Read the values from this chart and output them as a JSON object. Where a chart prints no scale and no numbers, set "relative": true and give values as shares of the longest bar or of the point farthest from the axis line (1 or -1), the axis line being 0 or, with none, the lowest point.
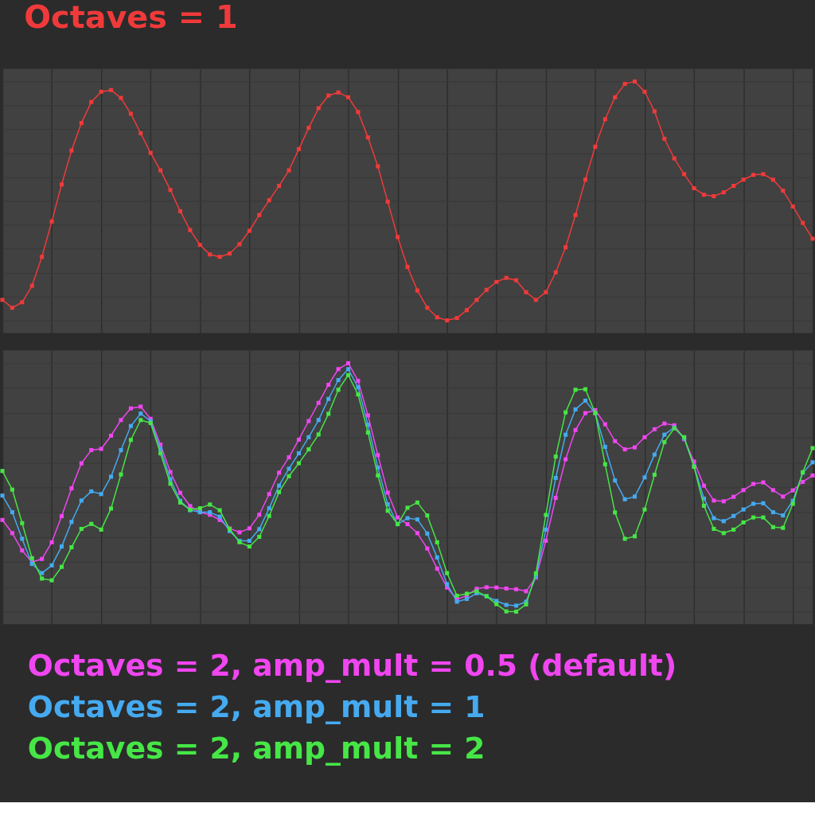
{
  "chart_data": [
    {
      "type": "line",
      "title": "Octaves = 1",
      "relative": true,
      "marker": "square",
      "grid": true,
      "tick_labels": false,
      "categories": [
        null,
        null,
        null,
        null,
        null,
        null,
        null,
        null,
        null,
        null,
        null,
        null,
        null,
        null,
        null,
        null,
        null,
        null,
        null,
        null,
        null,
        null,
        null,
        null,
        null,
        null,
        null,
        null,
        null,
        null,
        null,
        null,
        null,
        null,
        null,
        null,
        null,
        null,
        null,
        null,
        null,
        null,
        null,
        null,
        null,
        null,
        null,
        null,
        null,
        null,
        null,
        null,
        null,
        null,
        null,
        null,
        null,
        null,
        null,
        null,
        null,
        null,
        null,
        null,
        null,
        null,
        null,
        null,
        null,
        null,
        null,
        null,
        null,
        null,
        null,
        null,
        null,
        null,
        null,
        null,
        null,
        null,
        null
      ],
      "series": [
        {
          "color": "#f03a3a",
          "values": [
            0.086,
            0.053,
            0.076,
            0.145,
            0.266,
            0.414,
            0.569,
            0.711,
            0.826,
            0.914,
            0.957,
            0.964,
            0.931,
            0.865,
            0.783,
            0.701,
            0.628,
            0.546,
            0.457,
            0.378,
            0.316,
            0.276,
            0.266,
            0.28,
            0.319,
            0.375,
            0.441,
            0.503,
            0.563,
            0.628,
            0.717,
            0.806,
            0.888,
            0.941,
            0.954,
            0.934,
            0.872,
            0.766,
            0.645,
            0.497,
            0.349,
            0.224,
            0.125,
            0.053,
            0.013,
            0,
            0.01,
            0.043,
            0.086,
            0.128,
            0.161,
            0.178,
            0.168,
            0.118,
            0.086,
            0.118,
            0.201,
            0.306,
            0.441,
            0.589,
            0.727,
            0.842,
            0.934,
            0.99,
            1,
            0.957,
            0.875,
            0.76,
            0.678,
            0.612,
            0.553,
            0.526,
            0.52,
            0.536,
            0.563,
            0.589,
            0.609,
            0.612,
            0.589,
            0.543,
            0.477,
            0.408,
            0.342
          ]
        }
      ]
    },
    {
      "type": "line",
      "relative": true,
      "marker": "square",
      "grid": true,
      "tick_labels": false,
      "legend": "bottom",
      "categories": [
        null,
        null,
        null,
        null,
        null,
        null,
        null,
        null,
        null,
        null,
        null,
        null,
        null,
        null,
        null,
        null,
        null,
        null,
        null,
        null,
        null,
        null,
        null,
        null,
        null,
        null,
        null,
        null,
        null,
        null,
        null,
        null,
        null,
        null,
        null,
        null,
        null,
        null,
        null,
        null,
        null,
        null,
        null,
        null,
        null,
        null,
        null,
        null,
        null,
        null,
        null,
        null,
        null,
        null,
        null,
        null,
        null,
        null,
        null,
        null,
        null,
        null,
        null,
        null,
        null,
        null,
        null,
        null,
        null,
        null,
        null,
        null,
        null,
        null,
        null,
        null,
        null,
        null,
        null,
        null,
        null,
        null,
        null
      ],
      "series": [
        {
          "name": "Octaves = 2, amp_mult = 0.5 (default)",
          "color": "#f046f0",
          "values": [
            0.369,
            0.316,
            0.246,
            0.199,
            0.212,
            0.279,
            0.384,
            0.496,
            0.597,
            0.65,
            0.655,
            0.708,
            0.771,
            0.818,
            0.825,
            0.776,
            0.672,
            0.562,
            0.478,
            0.425,
            0.4,
            0.39,
            0.369,
            0.335,
            0.319,
            0.335,
            0.39,
            0.473,
            0.559,
            0.621,
            0.692,
            0.767,
            0.84,
            0.913,
            0.976,
            1,
            0.929,
            0.79,
            0.63,
            0.479,
            0.379,
            0.352,
            0.316,
            0.254,
            0.173,
            0.097,
            0.05,
            0.064,
            0.092,
            0.098,
            0.097,
            0.093,
            0.09,
            0.082,
            0.137,
            0.285,
            0.458,
            0.613,
            0.731,
            0.799,
            0.811,
            0.754,
            0.686,
            0.653,
            0.661,
            0.702,
            0.734,
            0.757,
            0.75,
            0.694,
            0.604,
            0.507,
            0.447,
            0.444,
            0.462,
            0.489,
            0.514,
            0.52,
            0.489,
            0.463,
            0.488,
            0.522,
            0.548
          ]
        },
        {
          "name": "Octaves = 2, amp_mult = 1",
          "color": "#45aaf0",
          "values": [
            0.467,
            0.4,
            0.293,
            0.192,
            0.155,
            0.186,
            0.262,
            0.361,
            0.447,
            0.484,
            0.473,
            0.543,
            0.65,
            0.747,
            0.797,
            0.767,
            0.655,
            0.533,
            0.446,
            0.408,
            0.4,
            0.4,
            0.382,
            0.324,
            0.285,
            0.285,
            0.332,
            0.416,
            0.507,
            0.575,
            0.637,
            0.702,
            0.771,
            0.856,
            0.932,
            0.976,
            0.903,
            0.752,
            0.58,
            0.432,
            0.352,
            0.376,
            0.371,
            0.314,
            0.218,
            0.111,
            0.04,
            0.051,
            0.074,
            0.062,
            0.043,
            0.027,
            0.024,
            0.04,
            0.142,
            0.33,
            0.538,
            0.712,
            0.814,
            0.849,
            0.799,
            0.663,
            0.528,
            0.452,
            0.463,
            0.54,
            0.632,
            0.712,
            0.741,
            0.697,
            0.585,
            0.455,
            0.376,
            0.364,
            0.385,
            0.411,
            0.434,
            0.436,
            0.4,
            0.387,
            0.446,
            0.559,
            0.601
          ]
        },
        {
          "name": "Octaves = 2, amp_mult = 2",
          "color": "#46e646",
          "values": [
            0.566,
            0.491,
            0.356,
            0.215,
            0.133,
            0.126,
            0.18,
            0.259,
            0.333,
            0.353,
            0.33,
            0.415,
            0.552,
            0.691,
            0.771,
            0.759,
            0.637,
            0.515,
            0.439,
            0.41,
            0.416,
            0.431,
            0.408,
            0.332,
            0.279,
            0.262,
            0.301,
            0.385,
            0.481,
            0.545,
            0.597,
            0.653,
            0.713,
            0.796,
            0.893,
            0.952,
            0.874,
            0.721,
            0.548,
            0.406,
            0.352,
            0.418,
            0.439,
            0.387,
            0.279,
            0.155,
            0.064,
            0.072,
            0.082,
            0.062,
            0.03,
            0.001,
            0,
            0.029,
            0.154,
            0.389,
            0.624,
            0.802,
            0.893,
            0.895,
            0.799,
            0.593,
            0.399,
            0.293,
            0.303,
            0.411,
            0.551,
            0.682,
            0.738,
            0.702,
            0.583,
            0.426,
            0.333,
            0.316,
            0.33,
            0.359,
            0.379,
            0.379,
            0.34,
            0.337,
            0.434,
            0.561,
            0.658
          ]
        }
      ]
    }
  ]
}
